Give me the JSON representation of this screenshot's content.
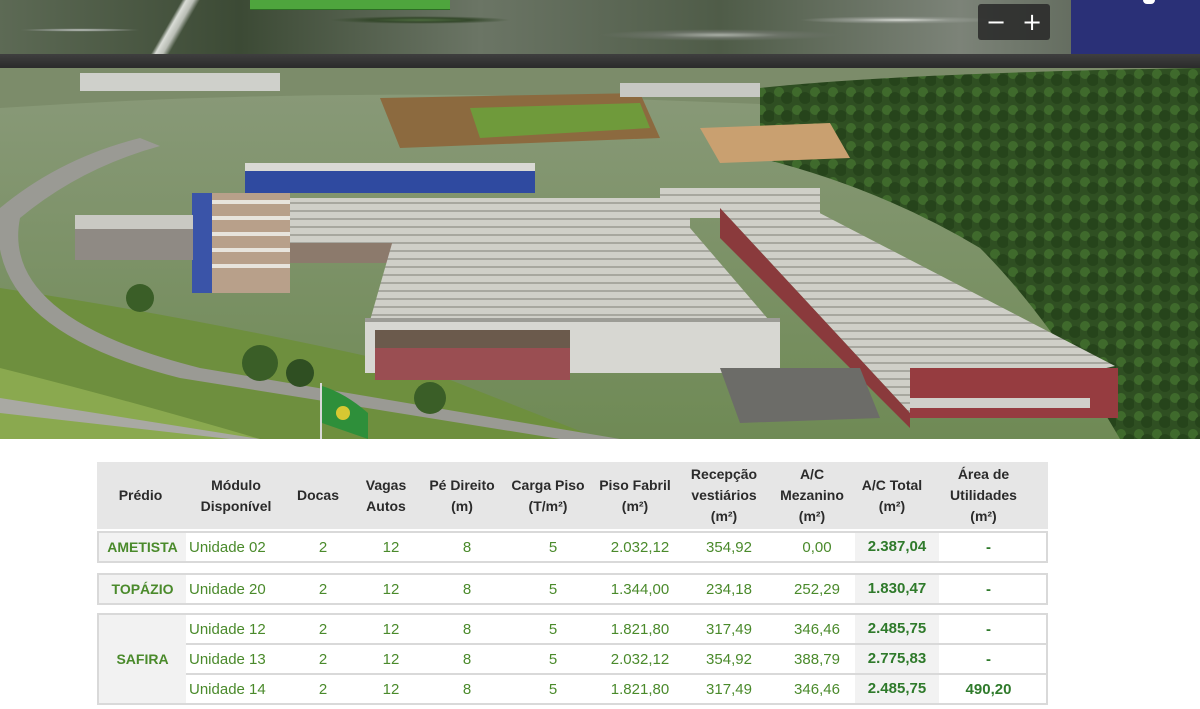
{
  "map": {
    "zoom_out_label": "−",
    "zoom_in_label": "+",
    "nav_color": "#2a3077"
  },
  "photo": {
    "subject": "aerial-industrial-park"
  },
  "table": {
    "headers": [
      "Prédio",
      "Módulo\nDisponível",
      "Docas",
      "Vagas\nAutos",
      "Pé Direito\n(m)",
      "Carga Piso\n(T/m²)",
      "Piso Fabril\n(m²)",
      "Recepção\nvestiários\n(m²)",
      "A/C\nMezanino\n(m²)",
      "A/C Total\n(m²)",
      "Área de\nUtilidades\n(m²)"
    ],
    "groups": [
      {
        "building": "AMETISTA",
        "rows": [
          {
            "module": "Unidade 02",
            "docks": "2",
            "parking": "12",
            "ceiling": "8",
            "floor_load": "5",
            "factory_floor": "2.032,12",
            "reception": "354,92",
            "mezzanine": "0,00",
            "total": "2.387,04",
            "utilities": "-"
          }
        ]
      },
      {
        "building": "TOPÁZIO",
        "rows": [
          {
            "module": "Unidade 20",
            "docks": "2",
            "parking": "12",
            "ceiling": "8",
            "floor_load": "5",
            "factory_floor": "1.344,00",
            "reception": "234,18",
            "mezzanine": "252,29",
            "total": "1.830,47",
            "utilities": "-"
          }
        ]
      },
      {
        "building": "SAFIRA",
        "rows": [
          {
            "module": "Unidade 12",
            "docks": "2",
            "parking": "12",
            "ceiling": "8",
            "floor_load": "5",
            "factory_floor": "1.821,80",
            "reception": "317,49",
            "mezzanine": "346,46",
            "total": "2.485,75",
            "utilities": "-"
          },
          {
            "module": "Unidade 13",
            "docks": "2",
            "parking": "12",
            "ceiling": "8",
            "floor_load": "5",
            "factory_floor": "2.032,12",
            "reception": "354,92",
            "mezzanine": "388,79",
            "total": "2.775,83",
            "utilities": "-"
          },
          {
            "module": "Unidade 14",
            "docks": "2",
            "parking": "12",
            "ceiling": "8",
            "floor_load": "5",
            "factory_floor": "1.821,80",
            "reception": "317,49",
            "mezzanine": "346,46",
            "total": "2.485,75",
            "utilities": "490,20"
          }
        ]
      }
    ]
  }
}
